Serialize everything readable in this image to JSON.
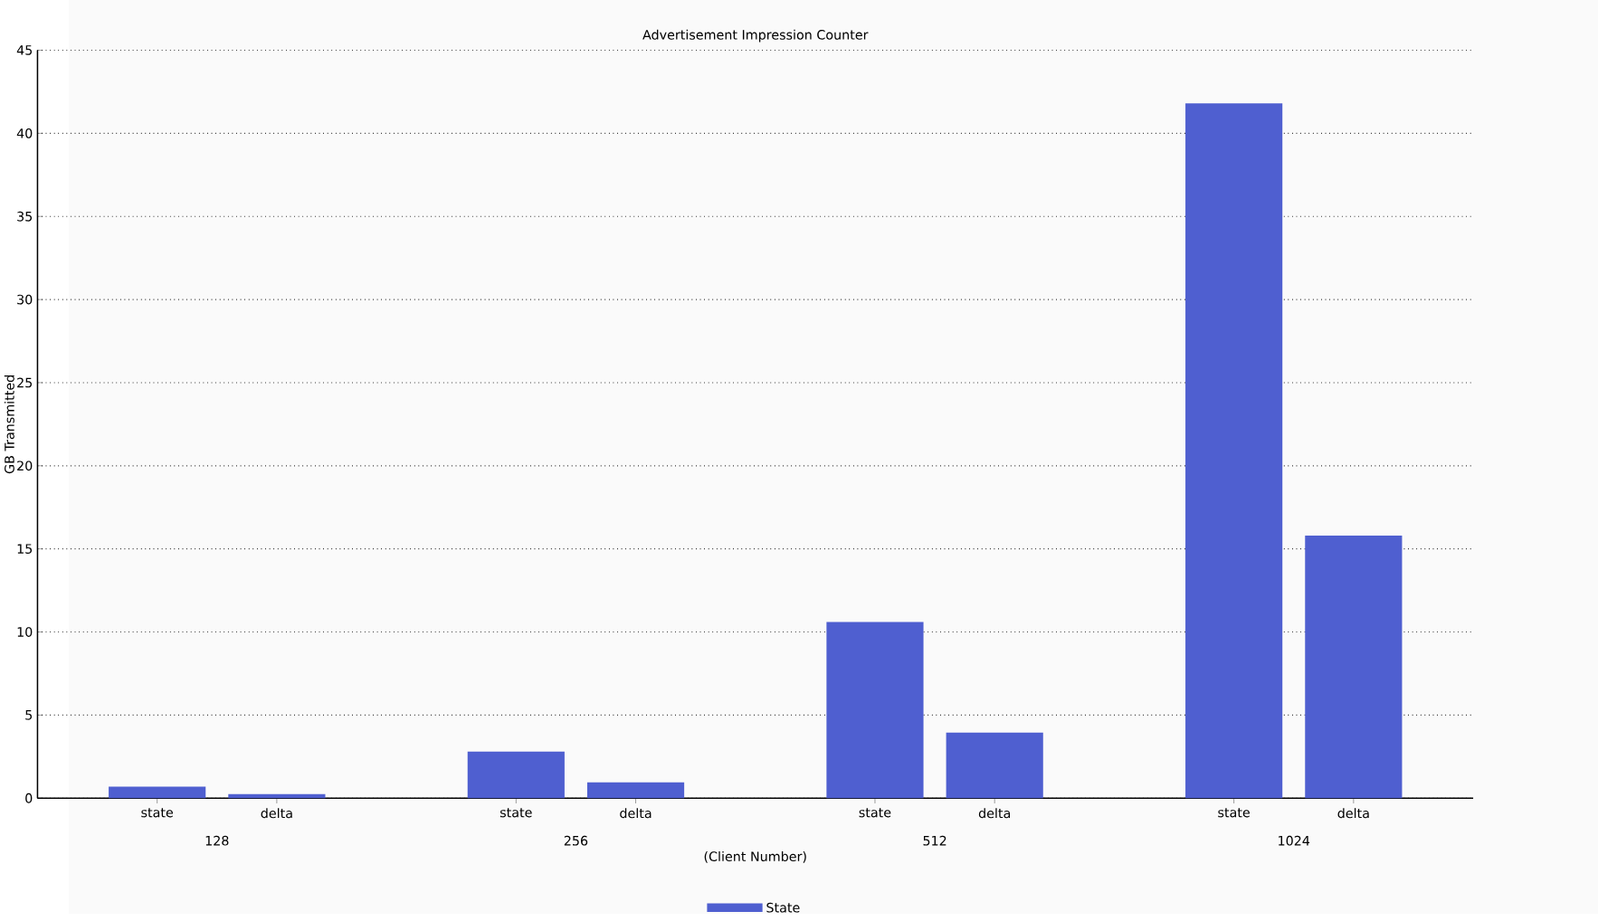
{
  "chart_data": {
    "type": "bar",
    "title": "Advertisement Impression Counter",
    "xlabel": "(Client Number)",
    "ylabel": "GB Transmitted",
    "categories": [
      "state",
      "delta",
      null,
      "state",
      "delta",
      null,
      "state",
      "delta",
      null,
      "state",
      "delta"
    ],
    "series": [
      {
        "name": "State",
        "color": "#4f5fd0",
        "values": [
          0.7,
          0.25,
          null,
          2.8,
          0.95,
          null,
          10.6,
          3.95,
          null,
          41.8,
          15.8
        ]
      }
    ],
    "annotations": [
      "128",
      "256",
      "512",
      "1024"
    ],
    "ylim": [
      0,
      45
    ],
    "yticks": [
      0,
      5,
      10,
      15,
      20,
      25,
      30,
      35,
      40,
      45
    ],
    "grid": "y",
    "legend": "bottom"
  }
}
